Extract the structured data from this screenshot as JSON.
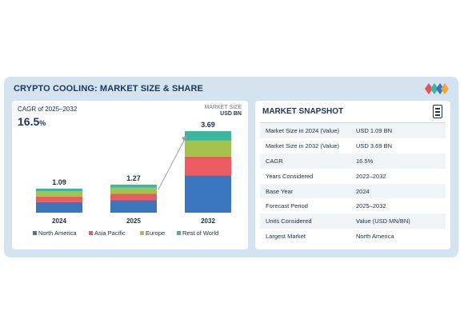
{
  "card": {
    "title": "CRYPTO COOLING: MARKET SIZE & SHARE"
  },
  "cagr": {
    "label": "CAGR of 2025–2032",
    "value": "16.5",
    "unit": "%"
  },
  "market_size_unit": {
    "line1": "MARKET SIZE",
    "line2": "USD BN"
  },
  "snapshot": {
    "title": "MARKET SNAPSHOT",
    "rows": [
      {
        "label": "Market Size in 2024 (Value)",
        "value": "USD 1.09 BN"
      },
      {
        "label": "Market Size in 2032 (Value)",
        "value": "USD 3.69 BN"
      },
      {
        "label": "CAGR",
        "value": "16.5%"
      },
      {
        "label": "Years Considered",
        "value": "2022–2032"
      },
      {
        "label": "Base Year",
        "value": "2024"
      },
      {
        "label": "Forecast Period",
        "value": "2025–2032"
      },
      {
        "label": "Units Considered",
        "value": "Value (USD MN/BN)"
      },
      {
        "label": "Largest Market",
        "value": "North America"
      }
    ]
  },
  "colors": {
    "north_america": "#3a75bd",
    "asia_pacific": "#ea5b63",
    "europe": "#a5c24d",
    "rest_of_world": "#3ab79d",
    "logo": [
      "#e94f5a",
      "#3ab79d",
      "#3a75bd",
      "#f2a33a"
    ]
  },
  "chart_data": {
    "type": "bar",
    "stacked": true,
    "categories": [
      "2024",
      "2025",
      "2032"
    ],
    "totals": [
      1.09,
      1.27,
      3.69
    ],
    "total_labels": [
      "1.09",
      "1.27",
      "3.69"
    ],
    "series": [
      {
        "name": "North America",
        "color_key": "north_america",
        "values": [
          0.48,
          0.56,
          1.68
        ]
      },
      {
        "name": "Asia Pacific",
        "color_key": "asia_pacific",
        "values": [
          0.25,
          0.29,
          0.86
        ]
      },
      {
        "name": "Europe",
        "color_key": "europe",
        "values": [
          0.24,
          0.28,
          0.72
        ]
      },
      {
        "name": "Rest of World",
        "color_key": "rest_of_world",
        "values": [
          0.12,
          0.14,
          0.43
        ]
      }
    ],
    "legend_position": "bottom",
    "grid": false,
    "ylim": [
      0,
      3.69
    ]
  }
}
